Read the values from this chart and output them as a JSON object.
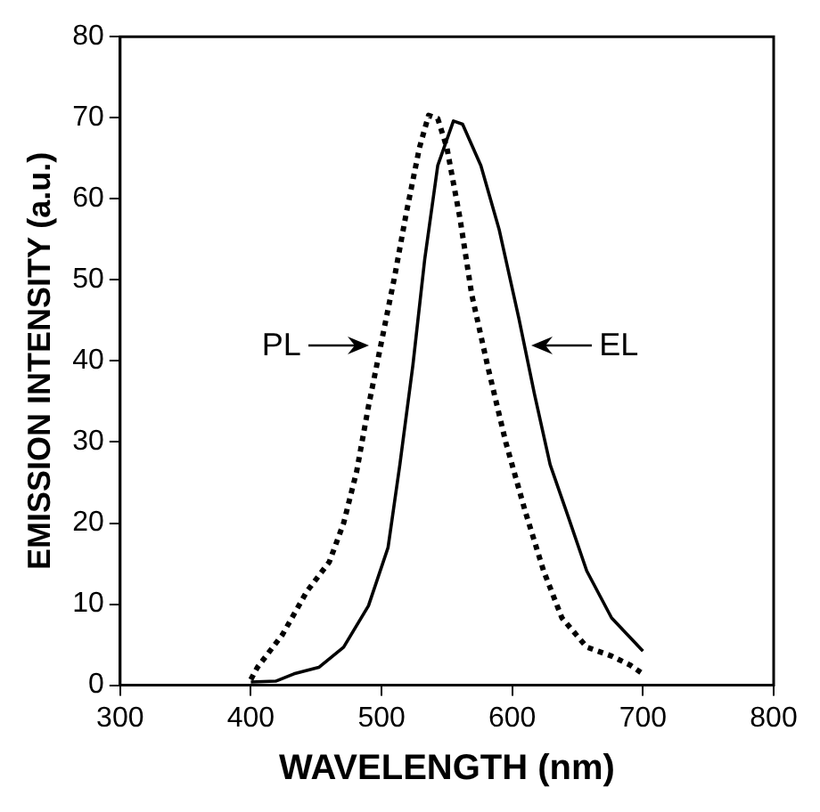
{
  "chart_data": {
    "type": "line",
    "xlabel": "WAVELENGTH (nm)",
    "ylabel": "EMISSION INTENSITY (a.u.)",
    "xlim": [
      300,
      800
    ],
    "xticks": [
      300,
      400,
      500,
      600,
      700,
      800
    ],
    "ylim": [
      0,
      80
    ],
    "yticks": [
      0,
      10,
      20,
      30,
      40,
      50,
      60,
      70,
      80
    ],
    "grid": false,
    "legend": false,
    "marker": "none",
    "series": [
      {
        "color": "#000000",
        "line_style": "dotted",
        "x": [
          400,
          405,
          424,
          443,
          460,
          471,
          481,
          490,
          500,
          510,
          519,
          529,
          536,
          543,
          550,
          560,
          569,
          581,
          595,
          610,
          624,
          638,
          657,
          676,
          690,
          700
        ],
        "values": [
          0.7,
          2.2,
          6.2,
          11.6,
          15.2,
          20,
          26.4,
          34.4,
          42.4,
          50.4,
          58.3,
          66.3,
          70.3,
          69.9,
          66.3,
          57.6,
          48.2,
          39.5,
          30,
          21.4,
          14.1,
          8.3,
          4.7,
          3.6,
          2.5,
          1.4
        ]
      },
      {
        "color": "#000000",
        "line_style": "solid",
        "x": [
          400,
          419,
          433,
          452,
          471,
          490,
          505,
          514,
          524,
          533,
          543,
          555,
          562,
          576,
          590,
          605,
          617,
          629,
          643,
          657,
          676,
          700
        ],
        "values": [
          0.4,
          0.5,
          1.4,
          2.2,
          4.7,
          9.8,
          17,
          27.2,
          39.5,
          52.5,
          64.1,
          69.6,
          69.2,
          64.1,
          56.2,
          45.3,
          35.9,
          27.2,
          20.7,
          14.1,
          8.3,
          4.2
        ]
      }
    ],
    "annotations": [
      {
        "text": "PL",
        "x": 493,
        "y": 42
      },
      {
        "text": "EL",
        "x": 612,
        "y": 42
      }
    ]
  }
}
